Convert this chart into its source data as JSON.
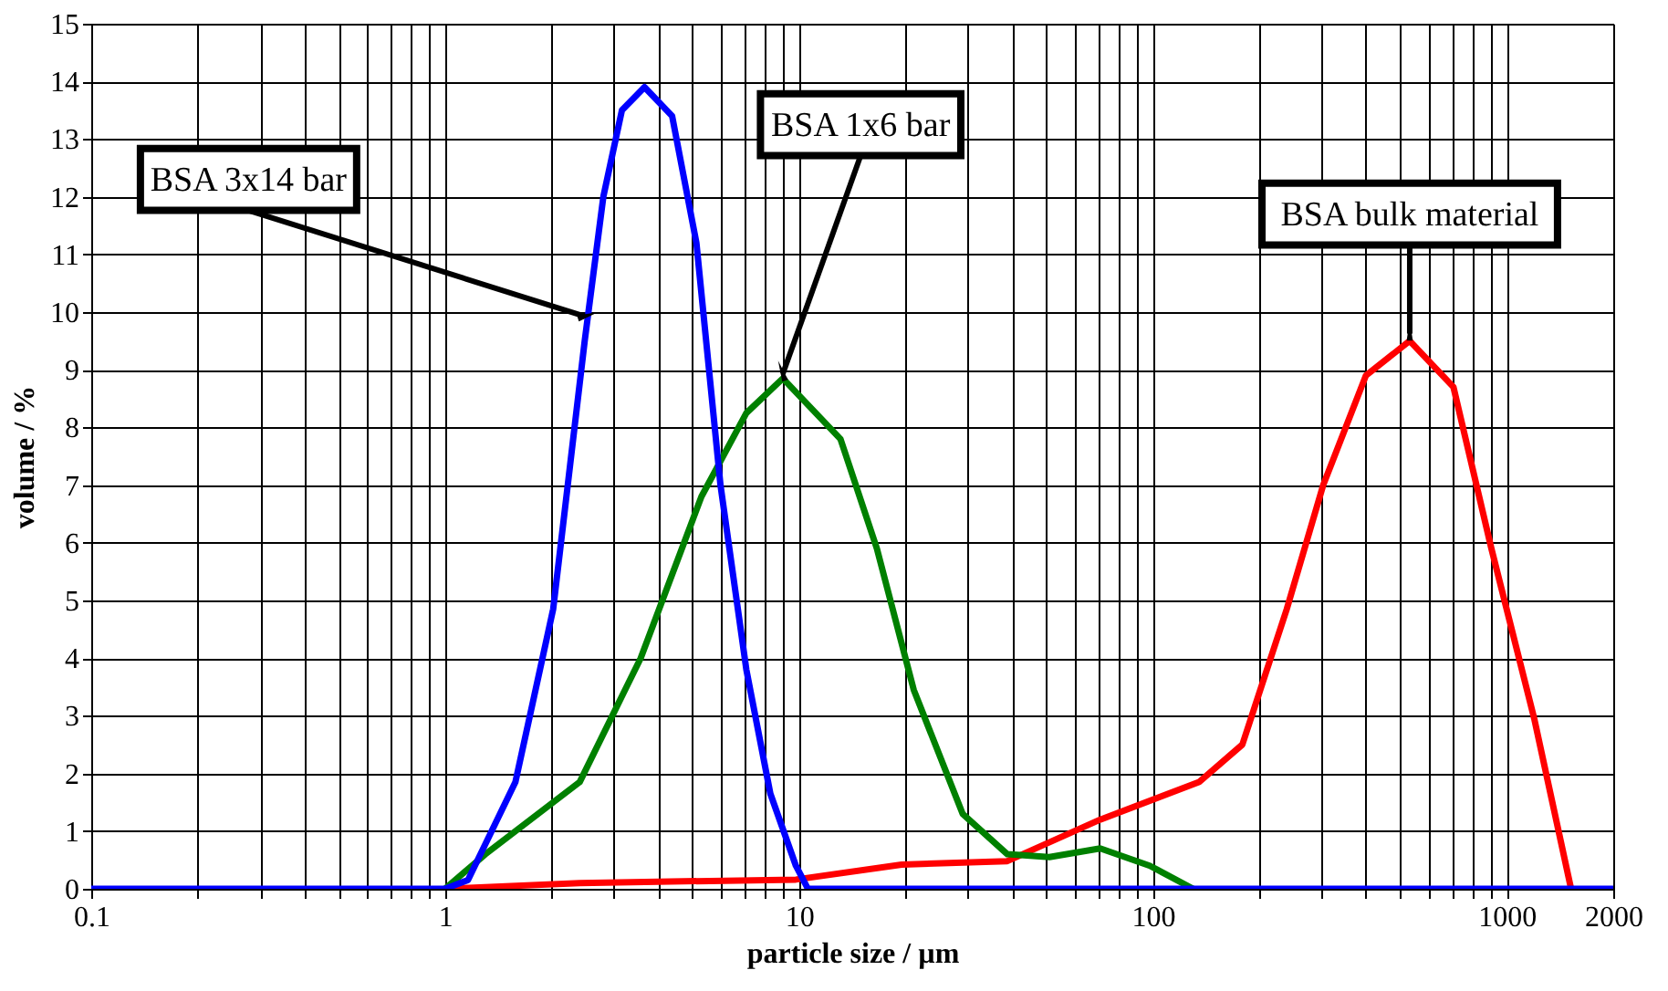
{
  "chart_data": {
    "type": "line",
    "xlabel": "particle size / µm",
    "ylabel": "volume / %",
    "log": "x",
    "grid": true,
    "marker": "none",
    "line_style": "solid",
    "xlim": [
      0.1,
      2000
    ],
    "ylim": [
      0,
      15
    ],
    "xticks": [
      0.1,
      {
        "value": 0.2,
        "label": null
      },
      {
        "value": 0.3,
        "label": null
      },
      {
        "value": 0.4,
        "label": null
      },
      {
        "value": 0.5,
        "label": null
      },
      {
        "value": 0.6,
        "label": null
      },
      {
        "value": 0.7,
        "label": null
      },
      {
        "value": 0.8,
        "label": null
      },
      {
        "value": 0.9,
        "label": null
      },
      1,
      {
        "value": 2,
        "label": null
      },
      {
        "value": 3,
        "label": null
      },
      {
        "value": 4,
        "label": null
      },
      {
        "value": 5,
        "label": null
      },
      {
        "value": 6,
        "label": null
      },
      {
        "value": 7,
        "label": null
      },
      {
        "value": 8,
        "label": null
      },
      {
        "value": 9,
        "label": null
      },
      10,
      {
        "value": 20,
        "label": null
      },
      {
        "value": 30,
        "label": null
      },
      {
        "value": 40,
        "label": null
      },
      {
        "value": 50,
        "label": null
      },
      {
        "value": 60,
        "label": null
      },
      {
        "value": 70,
        "label": null
      },
      {
        "value": 80,
        "label": null
      },
      {
        "value": 90,
        "label": null
      },
      100,
      {
        "value": 200,
        "label": null
      },
      {
        "value": 300,
        "label": null
      },
      {
        "value": 400,
        "label": null
      },
      {
        "value": 500,
        "label": null
      },
      {
        "value": 600,
        "label": null
      },
      {
        "value": 700,
        "label": null
      },
      {
        "value": 800,
        "label": null
      },
      {
        "value": 900,
        "label": null
      },
      1000,
      2000
    ],
    "yticks": [
      0,
      1,
      2,
      3,
      4,
      5,
      6,
      7,
      8,
      9,
      10,
      11,
      12,
      13,
      14,
      15
    ],
    "series": [
      {
        "color": "#ff0000",
        "x": [
          1,
          2.4,
          9.8,
          19.5,
          38.8,
          71,
          135,
          179,
          239,
          303,
          400,
          532,
          707,
          905,
          1196,
          1520
        ],
        "values": [
          0,
          0.1,
          0.16,
          0.42,
          0.48,
          1.2,
          1.85,
          2.5,
          4.85,
          7,
          8.9,
          9.5,
          8.7,
          5.9,
          2.95,
          0
        ]
      },
      {
        "color": "#008000",
        "x": [
          1,
          1.3,
          2.4,
          3.57,
          5.3,
          7.1,
          9.0,
          13.1,
          16.6,
          21.1,
          29,
          38.8,
          51,
          71,
          98,
          130
        ],
        "values": [
          0,
          0.6,
          1.85,
          4,
          6.8,
          8.25,
          8.85,
          7.8,
          5.9,
          3.45,
          1.3,
          0.6,
          0.55,
          0.7,
          0.4,
          0
        ]
      },
      {
        "color": "#0000ff",
        "x": [
          0.1,
          1,
          1.16,
          1.58,
          2.02,
          2.48,
          2.8,
          3.16,
          3.66,
          4.38,
          5.13,
          6.0,
          7.1,
          8.3,
          9.8,
          10.6,
          2000
        ],
        "values": [
          0,
          0,
          0.15,
          1.85,
          4.85,
          9.5,
          12,
          13.5,
          13.9,
          13.4,
          11.2,
          7,
          3.8,
          1.65,
          0.4,
          0,
          0
        ]
      }
    ],
    "annotations": [
      {
        "text": "BSA 3x14 bar",
        "x": 2.48,
        "y": 9.8
      },
      {
        "text": "BSA 1x6 bar",
        "x": 9.0,
        "y": 8.8
      },
      {
        "text": "BSA bulk material",
        "x": 532,
        "y": 9.5
      }
    ]
  }
}
